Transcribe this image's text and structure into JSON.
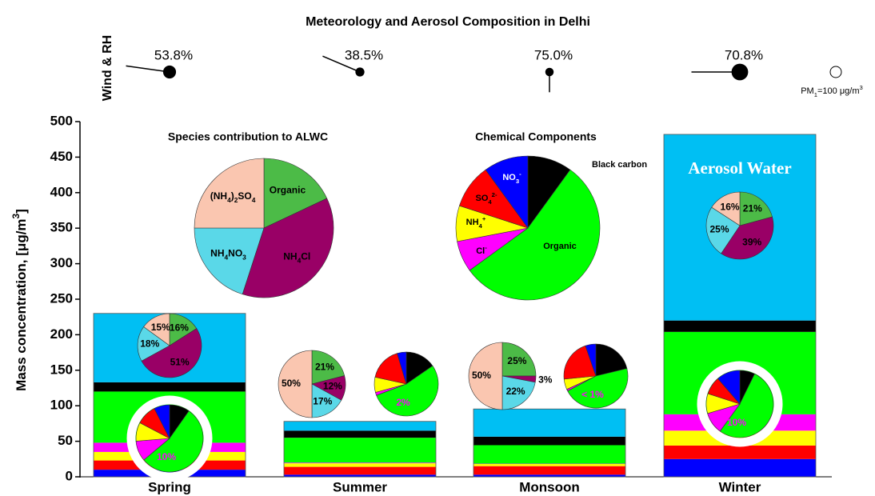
{
  "chart_data": {
    "type": "stacked_bar",
    "title": "Meteorology and Aerosol Composition in Delhi",
    "y_label": [
      {
        "text": "Mass concentration, [μg/m"
      },
      {
        "sup": "3"
      },
      {
        "text": "]"
      }
    ],
    "categories": [
      "Spring",
      "Summer",
      "Monsoon",
      "Winter"
    ],
    "ylim": [
      0,
      500
    ],
    "yticks": [
      0,
      50,
      100,
      150,
      200,
      250,
      300,
      350,
      400,
      450,
      500
    ],
    "series": [
      {
        "name": [
          {
            "text": "NO"
          },
          {
            "sub": "3"
          },
          {
            "sup": "-"
          }
        ],
        "color": "#0000ff",
        "values": [
          10,
          3,
          3,
          25
        ]
      },
      {
        "name": [
          {
            "text": "SO"
          },
          {
            "sub": "4"
          },
          {
            "sup": "2-"
          }
        ],
        "color": "#ff0000",
        "values": [
          13,
          11,
          12,
          19
        ]
      },
      {
        "name": [
          {
            "text": "NH"
          },
          {
            "sub": "4"
          },
          {
            "sup": "+"
          }
        ],
        "color": "#ffff00",
        "values": [
          12,
          5,
          3,
          21
        ]
      },
      {
        "name": [
          {
            "text": "Cl"
          },
          {
            "sup": "-"
          }
        ],
        "color": "#ff00ff",
        "values": [
          13,
          1,
          0.5,
          23
        ]
      },
      {
        "name": [
          {
            "text": "Organic"
          }
        ],
        "color": "#00ff00",
        "values": [
          72,
          35,
          26,
          116
        ]
      },
      {
        "name": [
          {
            "text": "Black carbon"
          }
        ],
        "color": "#000000",
        "values": [
          13,
          10,
          12,
          16
        ]
      },
      {
        "name": [
          {
            "text": "Aerosol Water"
          }
        ],
        "color": "#00bff3",
        "values": [
          97,
          13,
          39,
          262
        ]
      }
    ],
    "chemical_components": {
      "title": "Chemical Components",
      "values": [
        10,
        10,
        8,
        7,
        55,
        10
      ]
    },
    "cl_share": {
      "values": [
        10,
        2,
        0.5,
        10
      ],
      "value_labels": [
        "10%",
        "2%",
        "< 1%",
        "10%"
      ],
      "color": "#ff00ff"
    },
    "alwc": {
      "title": "Species contribution to ALWC",
      "species": [
        {
          "name": [
            {
              "text": "Organic"
            }
          ],
          "color": "#4cbb47"
        },
        {
          "name": [
            {
              "text": "NH"
            },
            {
              "sub": "4"
            },
            {
              "text": "Cl"
            }
          ],
          "color": "#990066"
        },
        {
          "name": [
            {
              "text": "NH"
            },
            {
              "sub": "4"
            },
            {
              "text": "NO"
            },
            {
              "sub": "3"
            }
          ],
          "color": "#5ad8e8"
        },
        {
          "name": [
            {
              "text": "(NH"
            },
            {
              "sub": "4"
            },
            {
              "text": ")"
            },
            {
              "sub": "2"
            },
            {
              "text": "SO"
            },
            {
              "sub": "4"
            }
          ],
          "color": "#fac6b0"
        }
      ],
      "overall": [
        18,
        37,
        20,
        25
      ],
      "seasons": [
        [
          16,
          51,
          18,
          15
        ],
        [
          21,
          12,
          17,
          50
        ],
        [
          25,
          3,
          22,
          50
        ],
        [
          21,
          39,
          25,
          16
        ]
      ],
      "value_labels": [
        [
          "16%",
          "51%",
          "18%",
          "15%"
        ],
        [
          "21%",
          "12%",
          "17%",
          "50%"
        ],
        [
          "25%",
          "3%",
          "22%",
          "50%"
        ],
        [
          "21%",
          "39%",
          "25%",
          "16%"
        ]
      ]
    },
    "meteorology": {
      "label": "Wind & RH",
      "rh": [
        53.8,
        38.5,
        75.0,
        70.8
      ],
      "rh_labels": [
        "53.8%",
        "38.5%",
        "75.0%",
        "70.8%"
      ],
      "wind_angle": [
        172,
        157,
        270,
        180
      ],
      "wind_speed": [
        5,
        4.6,
        2.3,
        5.5
      ],
      "pm1_reference": 100,
      "pm1_reference_label": [
        {
          "text": "PM"
        },
        {
          "sub": "1"
        },
        {
          "text": "="
        },
        {
          "value": "pm1_reference"
        },
        {
          "text": " μg/m"
        },
        {
          "sup": "3"
        }
      ]
    }
  }
}
